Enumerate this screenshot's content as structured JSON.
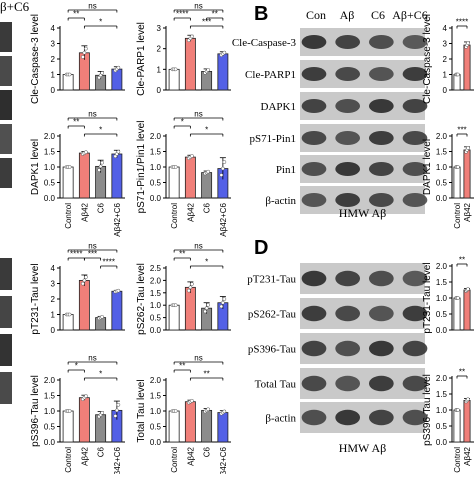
{
  "panel_letters": {
    "b": "B",
    "d": "D"
  },
  "top_left_fragment": "β+C6",
  "blot_b": {
    "column_headers": [
      "Con",
      "Aβ",
      "C6",
      "Aβ+C6"
    ],
    "row_labels": [
      "Cle-Caspase-3",
      "Cle-PARP1",
      "DAPK1",
      "pS71-Pin1",
      "Pin1",
      "β-actin"
    ],
    "caption": "HMW Aβ"
  },
  "blot_d": {
    "row_labels": [
      "pT231-Tau",
      "pS262-Tau",
      "pS396-Tau",
      "Total Tau",
      "β-actin"
    ],
    "caption": "HMW Aβ"
  },
  "categories": [
    "Control",
    "Aβ42",
    "C6",
    "Aβ42+C6"
  ],
  "colors": {
    "control": "#ffffff",
    "abeta": "#f07f79",
    "c6": "#8c8c8c",
    "combo": "#5360e6"
  },
  "chart_data": [
    {
      "id": "cle-casp3",
      "type": "bar",
      "ylabel": "Cle-Caspase-3 level",
      "ylim": [
        0,
        4
      ],
      "yticks": [
        0,
        1,
        2,
        3,
        4
      ],
      "values": [
        1.0,
        2.4,
        0.95,
        1.35
      ],
      "errors": [
        0.0,
        0.45,
        0.25,
        0.15
      ],
      "brackets": [
        {
          "from": 0,
          "to": 3,
          "label": "ns",
          "level": 3
        },
        {
          "from": 0,
          "to": 1,
          "label": "**",
          "level": 2
        },
        {
          "from": 1,
          "to": 3,
          "label": "*",
          "level": 1
        }
      ],
      "show_xticks": false
    },
    {
      "id": "cle-parp1",
      "type": "bar",
      "ylabel": "Cle-PARP1 level",
      "ylim": [
        0,
        3
      ],
      "yticks": [
        0,
        1,
        2,
        3
      ],
      "values": [
        1.0,
        2.5,
        0.9,
        1.75
      ],
      "errors": [
        0.0,
        0.15,
        0.12,
        0.1
      ],
      "brackets": [
        {
          "from": 0,
          "to": 3,
          "label": "ns",
          "level": 3
        },
        {
          "from": 0,
          "to": 1,
          "label": "****",
          "level": 2
        },
        {
          "from": 2,
          "to": 3,
          "label": "**",
          "level": 2
        },
        {
          "from": 1,
          "to": 3,
          "label": "***",
          "level": 1
        }
      ],
      "show_xticks": false
    },
    {
      "id": "dapk1",
      "type": "bar",
      "ylabel": "DAPK1 level",
      "ylim": [
        0,
        2.0
      ],
      "yticks": [
        0.0,
        0.5,
        1.0,
        1.5,
        2.0
      ],
      "values": [
        1.0,
        1.45,
        1.02,
        1.42
      ],
      "errors": [
        0.0,
        0.05,
        0.2,
        0.12
      ],
      "brackets": [
        {
          "from": 0,
          "to": 3,
          "label": "ns",
          "level": 3
        },
        {
          "from": 0,
          "to": 1,
          "label": "**",
          "level": 2
        },
        {
          "from": 1,
          "to": 3,
          "label": "*",
          "level": 1
        }
      ],
      "show_xticks": true
    },
    {
      "id": "ps71-pin1",
      "type": "bar",
      "ylabel": "pS71-Pin1/Pin1 level",
      "ylim": [
        0,
        2.0
      ],
      "yticks": [
        0.0,
        0.5,
        1.0,
        1.5,
        2.0
      ],
      "values": [
        1.0,
        1.32,
        0.82,
        0.95
      ],
      "errors": [
        0.0,
        0.06,
        0.05,
        0.35
      ],
      "brackets": [
        {
          "from": 0,
          "to": 3,
          "label": "ns",
          "level": 3
        },
        {
          "from": 0,
          "to": 1,
          "label": "*",
          "level": 2
        },
        {
          "from": 1,
          "to": 3,
          "label": "*",
          "level": 1
        }
      ],
      "show_xticks": true
    },
    {
      "id": "pt231-tau",
      "type": "bar",
      "ylabel": "pT231-Tau level",
      "ylim": [
        0,
        4
      ],
      "yticks": [
        0,
        1,
        2,
        3,
        4
      ],
      "values": [
        1.0,
        3.2,
        0.8,
        2.5
      ],
      "errors": [
        0.0,
        0.35,
        0.08,
        0.06
      ],
      "brackets": [
        {
          "from": 0,
          "to": 3,
          "label": "ns",
          "level": 3
        },
        {
          "from": 0,
          "to": 1,
          "label": "****",
          "level": 2
        },
        {
          "from": 1,
          "to": 2,
          "label": "***",
          "level": 2
        },
        {
          "from": 2,
          "to": 3,
          "label": "****",
          "level": 1
        }
      ],
      "show_xticks": false
    },
    {
      "id": "ps262-tau",
      "type": "bar",
      "ylabel": "pS262-Tau level",
      "ylim": [
        0,
        2.5
      ],
      "yticks": [
        0.0,
        0.5,
        1.0,
        1.5,
        2.0,
        2.5
      ],
      "values": [
        1.0,
        1.72,
        0.88,
        1.1
      ],
      "errors": [
        0.0,
        0.22,
        0.22,
        0.25
      ],
      "brackets": [
        {
          "from": 0,
          "to": 3,
          "label": "ns",
          "level": 3
        },
        {
          "from": 0,
          "to": 1,
          "label": "**",
          "level": 2
        },
        {
          "from": 1,
          "to": 3,
          "label": "*",
          "level": 1
        }
      ],
      "show_xticks": false
    },
    {
      "id": "ps396-tau",
      "type": "bar",
      "ylabel": "pS396-Tau level",
      "ylim": [
        0,
        2.0
      ],
      "yticks": [
        0.0,
        0.5,
        1.0,
        1.5,
        2.0
      ],
      "values": [
        1.0,
        1.43,
        0.88,
        1.02
      ],
      "errors": [
        0.0,
        0.08,
        0.1,
        0.3
      ],
      "brackets": [
        {
          "from": 0,
          "to": 3,
          "label": "ns",
          "level": 3
        },
        {
          "from": 0,
          "to": 1,
          "label": "*",
          "level": 2
        },
        {
          "from": 1,
          "to": 3,
          "label": "*",
          "level": 1
        }
      ],
      "show_xticks": true
    },
    {
      "id": "total-tau",
      "type": "bar",
      "ylabel": "Total Tau level",
      "ylim": [
        0,
        2.0
      ],
      "yticks": [
        0.0,
        0.5,
        1.0,
        1.5,
        2.0
      ],
      "values": [
        1.0,
        1.3,
        1.02,
        0.95
      ],
      "errors": [
        0.0,
        0.05,
        0.06,
        0.06
      ],
      "brackets": [
        {
          "from": 0,
          "to": 3,
          "label": "ns",
          "level": 3
        },
        {
          "from": 0,
          "to": 1,
          "label": "**",
          "level": 2
        },
        {
          "from": 1,
          "to": 3,
          "label": "**",
          "level": 1
        }
      ],
      "show_xticks": true
    },
    {
      "id": "cle-casp3-b",
      "type": "bar",
      "ylabel": "Cle-Caspase-3 level",
      "ylim": [
        0,
        4
      ],
      "yticks": [
        0,
        1,
        2,
        3,
        4
      ],
      "values": [
        1.0,
        2.9
      ],
      "errors": [
        0.0,
        0.2
      ],
      "brackets": [
        {
          "from": 0,
          "to": 1,
          "label": "****",
          "level": 1
        }
      ],
      "show_xticks": false
    },
    {
      "id": "dapk1-b",
      "type": "bar",
      "ylabel": "DAPK1 level",
      "ylim": [
        0,
        2.0
      ],
      "yticks": [
        0.0,
        0.5,
        1.0,
        1.5,
        2.0
      ],
      "values": [
        1.0,
        1.55
      ],
      "errors": [
        0.0,
        0.1
      ],
      "brackets": [
        {
          "from": 0,
          "to": 1,
          "label": "***",
          "level": 1
        }
      ],
      "show_xticks": true
    },
    {
      "id": "pt231-tau-d",
      "type": "bar",
      "ylabel": "pT231-Tau level",
      "ylim": [
        0,
        2.0
      ],
      "yticks": [
        0.0,
        0.5,
        1.0,
        1.5,
        2.0
      ],
      "values": [
        1.0,
        1.25
      ],
      "errors": [
        0.0,
        0.05
      ],
      "brackets": [
        {
          "from": 0,
          "to": 1,
          "label": "**",
          "level": 1
        }
      ],
      "show_xticks": false
    },
    {
      "id": "ps396-tau-d",
      "type": "bar",
      "ylabel": "pS396-Tau level",
      "ylim": [
        0,
        2.0
      ],
      "yticks": [
        0.0,
        0.5,
        1.0,
        1.5,
        2.0
      ],
      "values": [
        1.0,
        1.3
      ],
      "errors": [
        0.0,
        0.06
      ],
      "brackets": [
        {
          "from": 0,
          "to": 1,
          "label": "**",
          "level": 1
        }
      ],
      "show_xticks": true
    }
  ]
}
